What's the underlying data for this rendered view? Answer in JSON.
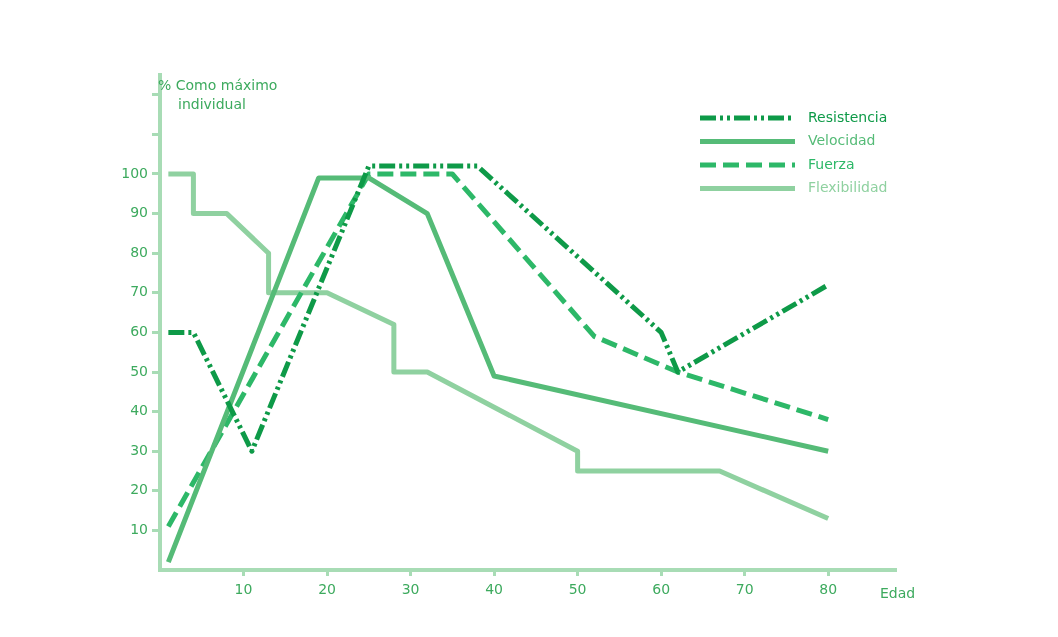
{
  "chart_data": {
    "type": "line",
    "xlabel": "Edad",
    "ylabel": "% Como máximo individual",
    "xlim": [
      0,
      88
    ],
    "xticks": [
      10,
      20,
      30,
      40,
      50,
      60,
      70,
      80
    ],
    "ylim": [
      0,
      125
    ],
    "yticks": [
      10,
      20,
      30,
      40,
      50,
      60,
      70,
      80,
      90,
      100,
      {
        "value": 110,
        "label": null
      },
      {
        "value": 120,
        "label": null
      }
    ],
    "grid": false,
    "legend": "top right",
    "marker": "none",
    "series": [
      {
        "name": "Resistencia",
        "color": "#0e9a48",
        "line_style": "dashdot",
        "x": [
          1,
          4,
          11,
          25,
          38,
          60,
          62,
          80
        ],
        "values": [
          60,
          60,
          30,
          102,
          102,
          60,
          50,
          72
        ]
      },
      {
        "name": "Velocidad",
        "color": "#55bb77",
        "line_style": "solid",
        "x": [
          1,
          19,
          25,
          32,
          40,
          80
        ],
        "values": [
          2,
          99,
          99,
          90,
          49,
          30
        ]
      },
      {
        "name": "Fuerza",
        "color": "#2db868",
        "line_style": "dashed",
        "x": [
          1,
          25,
          35,
          52,
          62,
          80
        ],
        "values": [
          11,
          100,
          100,
          59,
          50,
          38
        ]
      },
      {
        "name": "Flexibilidad",
        "color": "#8fd1a0",
        "line_style": "solid",
        "x": [
          1,
          4,
          4,
          8,
          13,
          13,
          20,
          28,
          28,
          32,
          50,
          50,
          67,
          80
        ],
        "values": [
          100,
          100,
          90,
          90,
          80,
          70,
          70,
          62,
          50,
          50,
          30,
          25,
          25,
          13
        ]
      }
    ]
  }
}
